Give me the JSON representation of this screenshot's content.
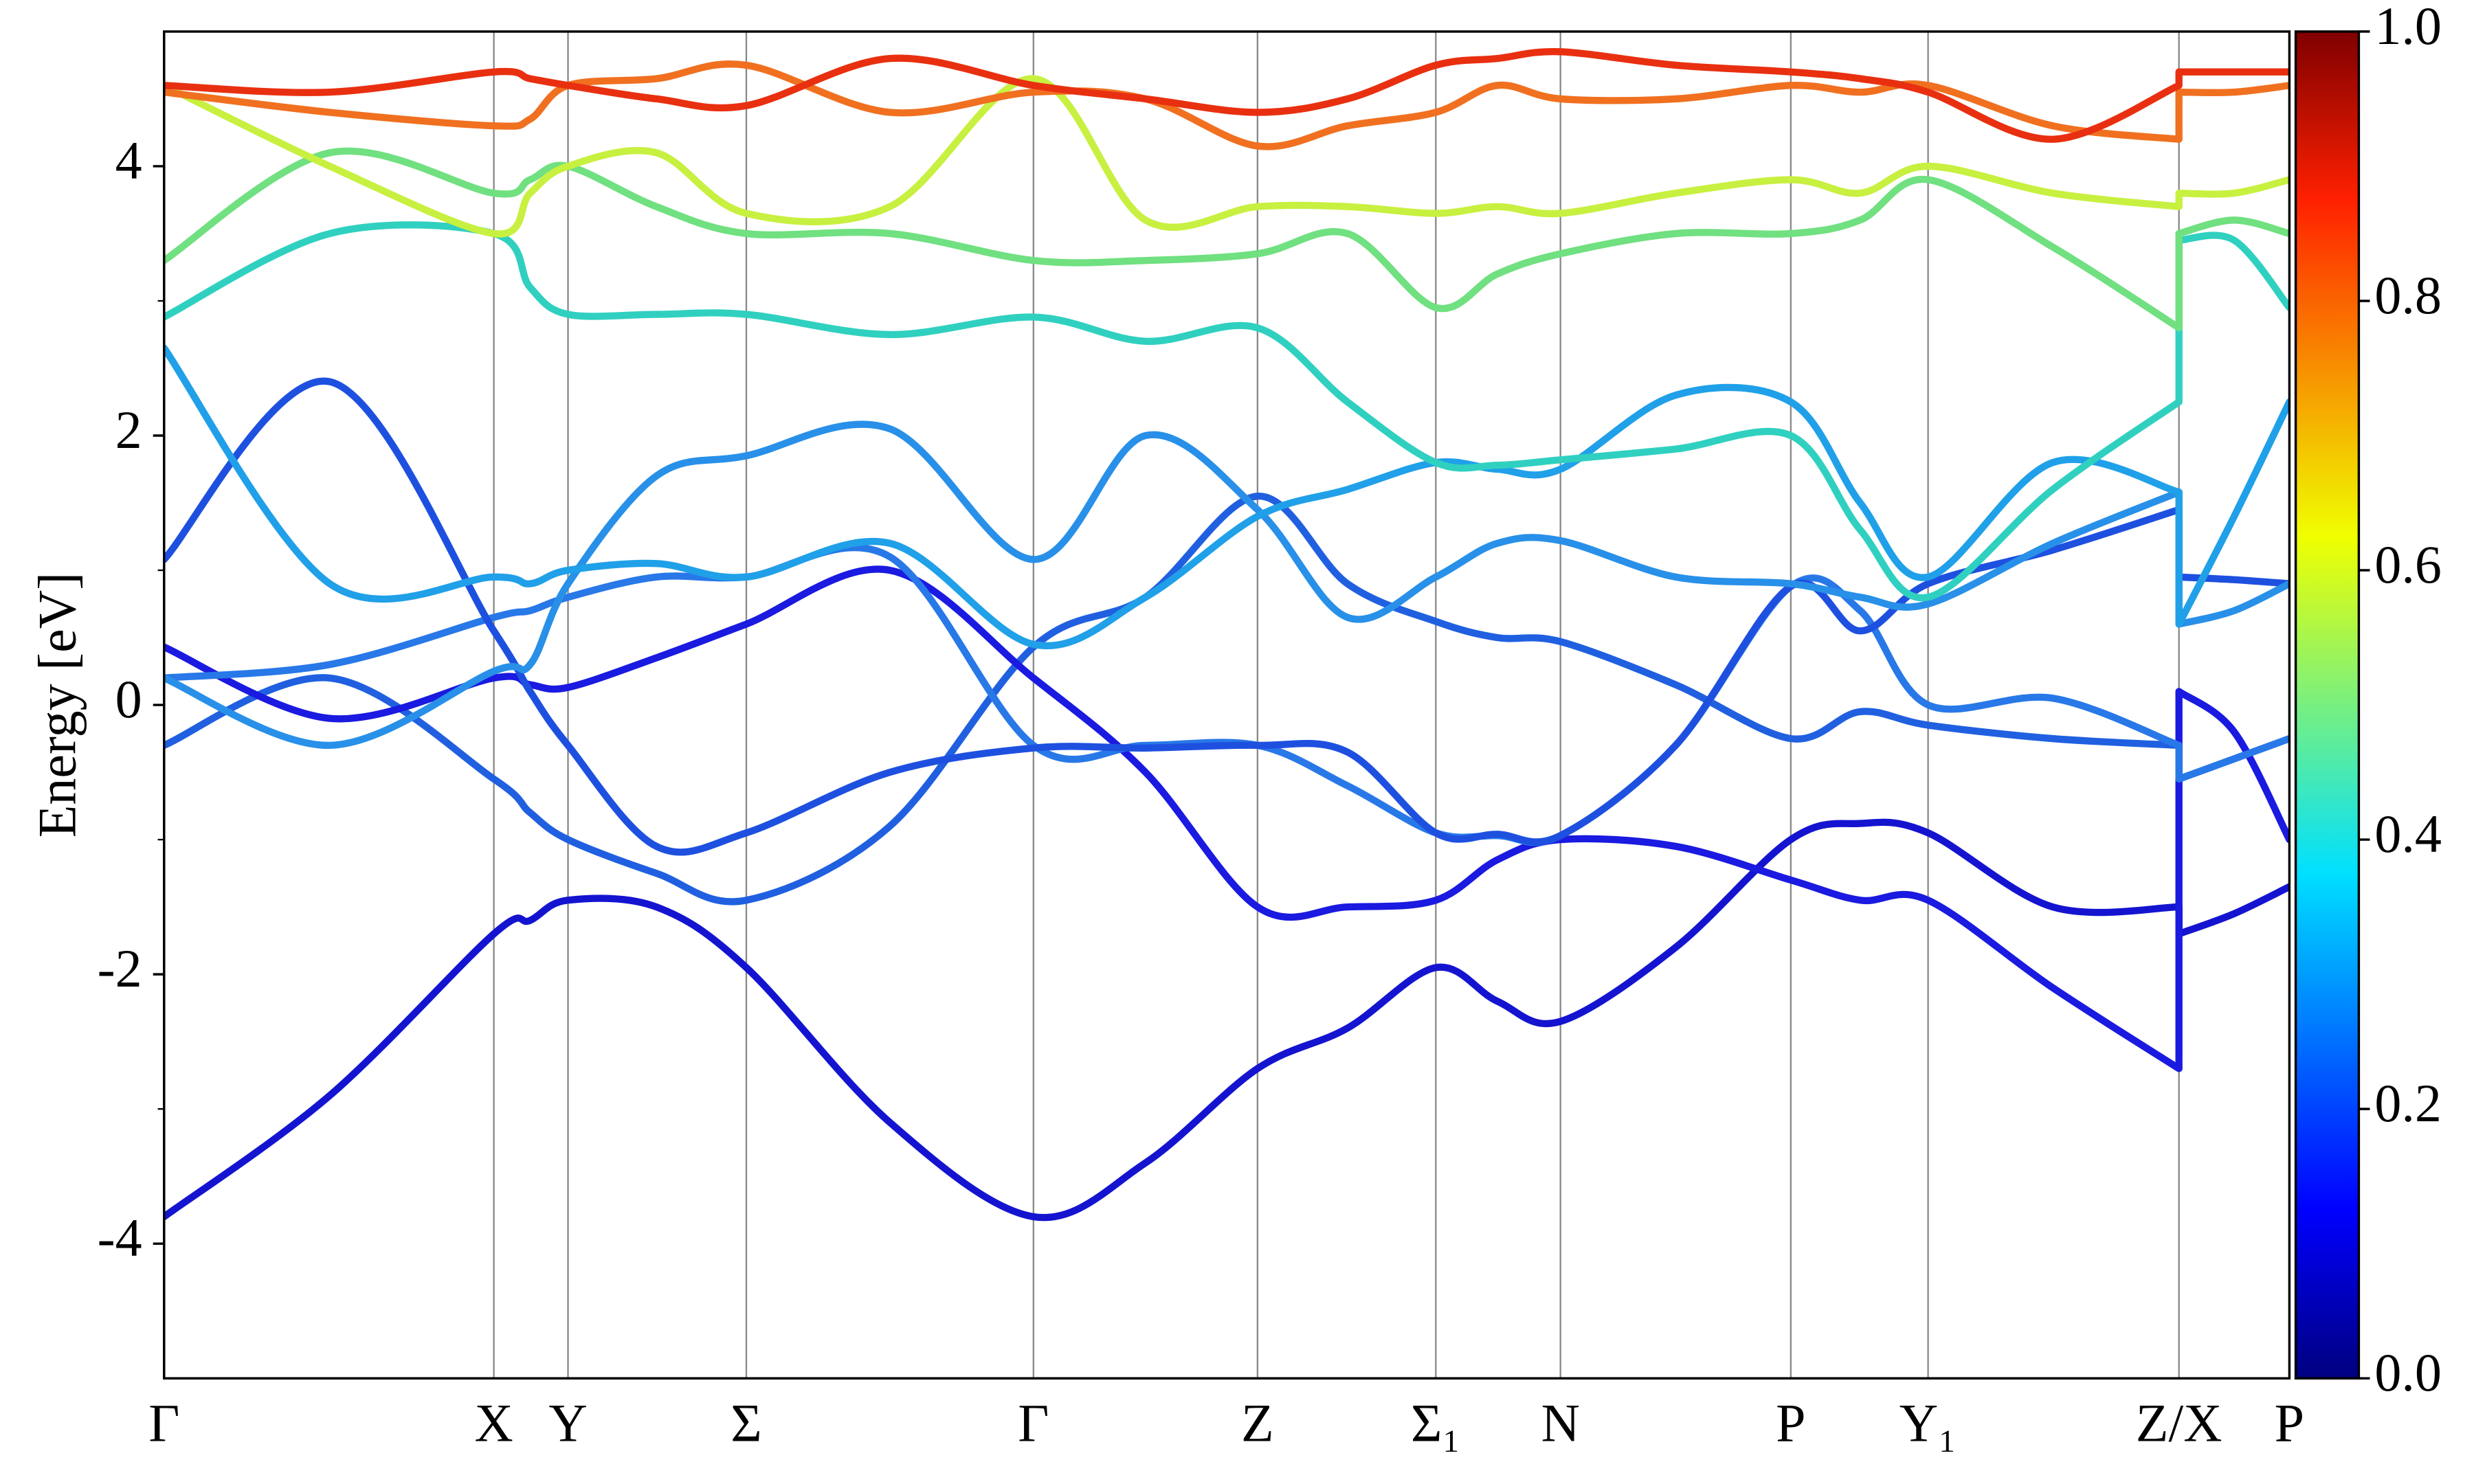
{
  "chart_data": {
    "type": "line",
    "ylabel": "Energy [eV]",
    "x": [
      0,
      105,
      209,
      232,
      256,
      312,
      369,
      460,
      551,
      622,
      693,
      750,
      806,
      845,
      885,
      958,
      1031,
      1075,
      1118,
      1197,
      1277,
      1277,
      1312,
      1347
    ],
    "xlim": [
      0,
      1347
    ],
    "xticks": [
      {
        "value": 0,
        "label": "Γ"
      },
      {
        "value": 209,
        "label": "X"
      },
      {
        "value": 256,
        "label": "Y"
      },
      {
        "value": 369,
        "label": "Σ"
      },
      {
        "value": 551,
        "label": "Γ"
      },
      {
        "value": 693,
        "label": "Z"
      },
      {
        "value": 806,
        "label": "Σ₁"
      },
      {
        "value": 885,
        "label": "N"
      },
      {
        "value": 1031,
        "label": "P"
      },
      {
        "value": 1118,
        "label": "Y₁"
      },
      {
        "value": 1277,
        "label": "Z/X"
      },
      {
        "value": 1347,
        "label": "P"
      }
    ],
    "ylim": [
      -5,
      5
    ],
    "yticks": [
      -4,
      -2,
      0,
      2,
      4
    ],
    "yminorticks": [
      -3,
      -1,
      1,
      3
    ],
    "grid": "x",
    "colorbar": {
      "lim": [
        0,
        1
      ],
      "ticks": [
        {
          "value": 0,
          "label": "0.0"
        },
        {
          "value": 0.2,
          "label": "0.2"
        },
        {
          "value": 0.4,
          "label": "0.4"
        },
        {
          "value": 0.6,
          "label": "0.6"
        },
        {
          "value": 0.8,
          "label": "0.8"
        },
        {
          "value": 1,
          "label": "1.0"
        }
      ]
    },
    "series": [
      {
        "color": "#1414d0",
        "values": [
          -3.8,
          -2.9,
          -1.7,
          -1.6,
          -1.45,
          -1.5,
          -1.95,
          -3.1,
          -3.8,
          -3.4,
          -2.7,
          -2.4,
          -1.95,
          -2.2,
          -2.35,
          -1.8,
          -1.0,
          -0.88,
          -0.95,
          -1.5,
          -1.5,
          -1.7,
          -1.55,
          -1.35
        ]
      },
      {
        "color": "#2060e0",
        "values": [
          -0.3,
          0.2,
          -0.55,
          -0.8,
          -1.0,
          -1.25,
          -1.45,
          -0.9,
          0.43,
          0.8,
          1.55,
          0.9,
          0.62,
          0.5,
          0.47,
          0.15,
          -0.25,
          -0.05,
          -0.15,
          -0.25,
          -0.3,
          -0.55,
          -0.4,
          -0.25
        ]
      },
      {
        "color": "#1a1ae0",
        "values": [
          0.43,
          -0.1,
          0.2,
          0.15,
          0.13,
          0.35,
          0.6,
          1.0,
          0.2,
          -0.5,
          -1.5,
          -1.5,
          -1.45,
          -1.15,
          -1.0,
          -1.05,
          -1.3,
          -1.45,
          -1.45,
          -2.1,
          -2.7,
          0.1,
          -0.2,
          -1.0
        ]
      },
      {
        "color": "#2878e8",
        "values": [
          0.2,
          0.3,
          0.65,
          0.7,
          0.8,
          0.95,
          0.95,
          1.1,
          -0.3,
          -0.3,
          -0.3,
          -0.6,
          -0.95,
          -0.97,
          -0.97,
          -0.3,
          0.88,
          0.7,
          0.0,
          0.05,
          -0.3,
          -0.55,
          -0.4,
          -0.25
        ]
      },
      {
        "color": "#1e50e0",
        "values": [
          1.08,
          2.4,
          0.55,
          0.1,
          -0.3,
          -1.05,
          -0.95,
          -0.5,
          -0.32,
          -0.32,
          -0.3,
          -0.35,
          -0.95,
          -0.96,
          -0.97,
          -0.3,
          0.88,
          0.55,
          0.9,
          1.15,
          1.45,
          0.95,
          0.93,
          0.9
        ]
      },
      {
        "color": "#2890e8",
        "values": [
          0.2,
          -0.3,
          0.25,
          0.3,
          0.9,
          1.7,
          1.85,
          2.05,
          1.08,
          2.0,
          1.45,
          0.65,
          0.95,
          1.2,
          1.22,
          0.95,
          0.9,
          0.8,
          0.75,
          1.2,
          1.58,
          0.6,
          0.7,
          0.9
        ]
      },
      {
        "color": "#20a0e8",
        "values": [
          2.65,
          0.9,
          0.95,
          0.9,
          1.0,
          1.05,
          0.95,
          1.2,
          0.45,
          0.8,
          1.4,
          1.6,
          1.8,
          1.75,
          1.75,
          2.3,
          2.25,
          1.5,
          0.95,
          1.8,
          1.58,
          0.6,
          1.4,
          2.25
        ]
      },
      {
        "color": "#30d0c0",
        "values": [
          2.88,
          3.5,
          3.5,
          3.1,
          2.9,
          2.9,
          2.9,
          2.75,
          2.88,
          2.7,
          2.8,
          2.25,
          1.8,
          1.78,
          1.82,
          1.9,
          2.0,
          1.3,
          0.8,
          1.6,
          2.25,
          3.45,
          3.45,
          2.95
        ]
      },
      {
        "color": "#70e080",
        "values": [
          3.3,
          4.1,
          3.8,
          3.9,
          4.0,
          3.7,
          3.5,
          3.5,
          3.3,
          3.3,
          3.35,
          3.5,
          2.95,
          3.2,
          3.35,
          3.5,
          3.5,
          3.6,
          3.9,
          3.4,
          2.8,
          3.5,
          3.6,
          3.5
        ]
      },
      {
        "color": "#c8f040",
        "values": [
          4.6,
          4.0,
          3.5,
          3.8,
          4.0,
          4.1,
          3.65,
          3.7,
          4.65,
          3.6,
          3.7,
          3.7,
          3.65,
          3.7,
          3.65,
          3.8,
          3.9,
          3.8,
          4.0,
          3.8,
          3.7,
          3.8,
          3.8,
          3.9
        ]
      },
      {
        "color": "#f07020",
        "values": [
          4.55,
          4.4,
          4.3,
          4.35,
          4.6,
          4.65,
          4.75,
          4.4,
          4.55,
          4.5,
          4.15,
          4.3,
          4.4,
          4.6,
          4.5,
          4.5,
          4.6,
          4.55,
          4.6,
          4.3,
          4.2,
          4.55,
          4.55,
          4.6
        ]
      },
      {
        "color": "#e83010",
        "values": [
          4.6,
          4.55,
          4.7,
          4.65,
          4.6,
          4.5,
          4.45,
          4.8,
          4.6,
          4.5,
          4.4,
          4.5,
          4.75,
          4.8,
          4.85,
          4.75,
          4.7,
          4.65,
          4.55,
          4.2,
          4.6,
          4.7,
          4.7,
          4.7
        ]
      }
    ]
  }
}
